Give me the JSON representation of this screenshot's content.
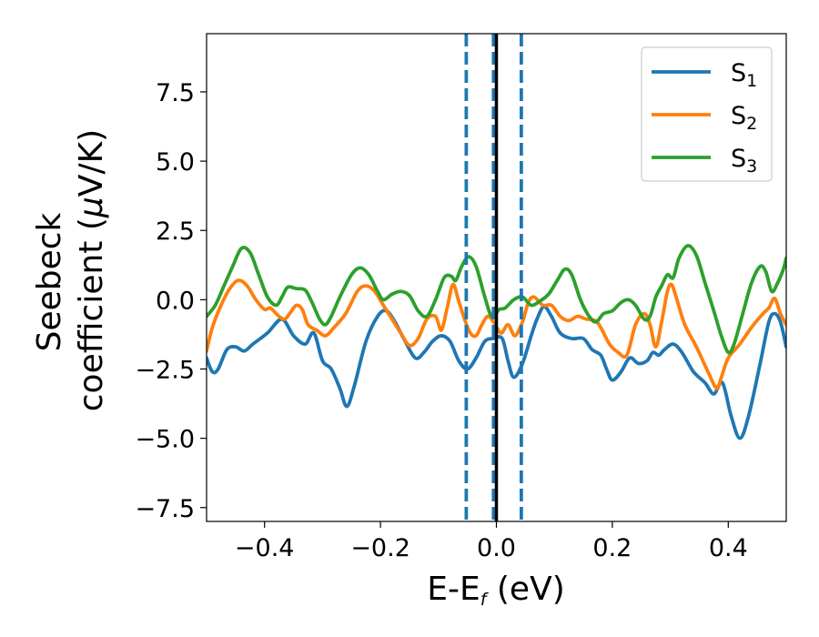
{
  "chart_data": {
    "type": "line",
    "xlabel": "E-E",
    "xlabel_subscript": "f",
    "xlabel_unit": " (eV)",
    "ylabel_line1": "Seebeck",
    "ylabel_line2": "coefficient  (",
    "ylabel_mu": "μ",
    "ylabel_end": "V/K)",
    "xlim": [
      -0.5,
      0.5
    ],
    "ylim": [
      -8.0,
      9.6
    ],
    "xticks": [
      -0.4,
      -0.2,
      0.0,
      0.2,
      0.4
    ],
    "xtick_labels": [
      "−0.4",
      "−0.2",
      "0.0",
      "0.2",
      "0.4"
    ],
    "yticks": [
      -7.5,
      -5.0,
      -2.5,
      0.0,
      2.5,
      5.0,
      7.5
    ],
    "ytick_labels": [
      "−7.5",
      "−5.0",
      "−2.5",
      "0.0",
      "2.5",
      "5.0",
      "7.5"
    ],
    "grid": false,
    "legend_position": "top-right",
    "vertical_lines": [
      {
        "x": -0.052,
        "style": "dashed",
        "color": "#1f77b4"
      },
      {
        "x": -0.005,
        "style": "dashed",
        "color": "#1f77b4"
      },
      {
        "x": 0.043,
        "style": "dashed",
        "color": "#1f77b4"
      },
      {
        "x": 0.0,
        "style": "solid",
        "color": "#000000"
      }
    ],
    "series": [
      {
        "name": "S",
        "subscript": "1",
        "color": "#1f77b4",
        "points": [
          [
            -0.5,
            -2.1
          ],
          [
            -0.49,
            -2.6
          ],
          [
            -0.48,
            -2.5
          ],
          [
            -0.465,
            -1.8
          ],
          [
            -0.45,
            -1.7
          ],
          [
            -0.435,
            -1.85
          ],
          [
            -0.42,
            -1.6
          ],
          [
            -0.395,
            -1.2
          ],
          [
            -0.37,
            -0.7
          ],
          [
            -0.35,
            -1.3
          ],
          [
            -0.33,
            -1.6
          ],
          [
            -0.315,
            -1.2
          ],
          [
            -0.3,
            -2.2
          ],
          [
            -0.285,
            -2.5
          ],
          [
            -0.27,
            -3.2
          ],
          [
            -0.258,
            -3.85
          ],
          [
            -0.245,
            -3.1
          ],
          [
            -0.225,
            -1.5
          ],
          [
            -0.205,
            -0.6
          ],
          [
            -0.19,
            -0.4
          ],
          [
            -0.175,
            -0.8
          ],
          [
            -0.16,
            -1.4
          ],
          [
            -0.14,
            -2.1
          ],
          [
            -0.125,
            -1.9
          ],
          [
            -0.11,
            -1.5
          ],
          [
            -0.095,
            -1.3
          ],
          [
            -0.08,
            -1.5
          ],
          [
            -0.065,
            -2.2
          ],
          [
            -0.05,
            -2.5
          ],
          [
            -0.035,
            -2.1
          ],
          [
            -0.02,
            -1.5
          ],
          [
            -0.005,
            -1.4
          ],
          [
            0.01,
            -1.4
          ],
          [
            0.02,
            -2.2
          ],
          [
            0.03,
            -2.8
          ],
          [
            0.045,
            -2.3
          ],
          [
            0.06,
            -1.3
          ],
          [
            0.07,
            -0.7
          ],
          [
            0.082,
            -0.25
          ],
          [
            0.095,
            -0.6
          ],
          [
            0.11,
            -1.2
          ],
          [
            0.13,
            -1.4
          ],
          [
            0.15,
            -1.4
          ],
          [
            0.165,
            -1.8
          ],
          [
            0.18,
            -2.0
          ],
          [
            0.19,
            -2.5
          ],
          [
            0.2,
            -2.9
          ],
          [
            0.215,
            -2.6
          ],
          [
            0.23,
            -2.1
          ],
          [
            0.245,
            -2.3
          ],
          [
            0.26,
            -2.2
          ],
          [
            0.27,
            -1.9
          ],
          [
            0.28,
            -2.0
          ],
          [
            0.29,
            -1.8
          ],
          [
            0.305,
            -1.6
          ],
          [
            0.32,
            -1.9
          ],
          [
            0.34,
            -2.6
          ],
          [
            0.36,
            -3.0
          ],
          [
            0.375,
            -3.4
          ],
          [
            0.39,
            -3.0
          ],
          [
            0.405,
            -4.2
          ],
          [
            0.42,
            -5.0
          ],
          [
            0.435,
            -4.2
          ],
          [
            0.455,
            -2.3
          ],
          [
            0.47,
            -0.8
          ],
          [
            0.48,
            -0.5
          ],
          [
            0.49,
            -0.8
          ],
          [
            0.5,
            -1.7
          ]
        ]
      },
      {
        "name": "S",
        "subscript": "2",
        "color": "#ff7f0e",
        "points": [
          [
            -0.5,
            -1.85
          ],
          [
            -0.49,
            -1.0
          ],
          [
            -0.475,
            -0.2
          ],
          [
            -0.46,
            0.4
          ],
          [
            -0.445,
            0.7
          ],
          [
            -0.43,
            0.5
          ],
          [
            -0.415,
            0.0
          ],
          [
            -0.4,
            -0.35
          ],
          [
            -0.39,
            -0.3
          ],
          [
            -0.375,
            -0.6
          ],
          [
            -0.365,
            -0.7
          ],
          [
            -0.355,
            -0.45
          ],
          [
            -0.345,
            -0.2
          ],
          [
            -0.335,
            -0.35
          ],
          [
            -0.325,
            -0.9
          ],
          [
            -0.31,
            -1.1
          ],
          [
            -0.295,
            -1.3
          ],
          [
            -0.28,
            -1.0
          ],
          [
            -0.26,
            -0.5
          ],
          [
            -0.24,
            0.3
          ],
          [
            -0.225,
            0.5
          ],
          [
            -0.21,
            0.3
          ],
          [
            -0.195,
            -0.2
          ],
          [
            -0.18,
            -0.7
          ],
          [
            -0.165,
            -1.2
          ],
          [
            -0.15,
            -1.65
          ],
          [
            -0.135,
            -1.4
          ],
          [
            -0.12,
            -0.7
          ],
          [
            -0.105,
            -0.6
          ],
          [
            -0.095,
            -1.1
          ],
          [
            -0.085,
            -0.3
          ],
          [
            -0.075,
            0.55
          ],
          [
            -0.065,
            -0.05
          ],
          [
            -0.055,
            -0.7
          ],
          [
            -0.045,
            -1.2
          ],
          [
            -0.035,
            -1.3
          ],
          [
            -0.025,
            -0.9
          ],
          [
            -0.015,
            -0.6
          ],
          [
            -0.005,
            -0.8
          ],
          [
            0.008,
            -1.2
          ],
          [
            0.02,
            -0.9
          ],
          [
            0.032,
            -1.3
          ],
          [
            0.045,
            -0.8
          ],
          [
            0.055,
            -0.1
          ],
          [
            0.065,
            0.1
          ],
          [
            0.08,
            -0.2
          ],
          [
            0.095,
            -0.2
          ],
          [
            0.11,
            -0.6
          ],
          [
            0.125,
            -0.75
          ],
          [
            0.14,
            -0.6
          ],
          [
            0.155,
            -0.7
          ],
          [
            0.17,
            -0.75
          ],
          [
            0.18,
            -1.0
          ],
          [
            0.195,
            -1.6
          ],
          [
            0.21,
            -1.9
          ],
          [
            0.225,
            -2.0
          ],
          [
            0.24,
            -0.9
          ],
          [
            0.255,
            -0.5
          ],
          [
            0.265,
            -0.9
          ],
          [
            0.275,
            -1.7
          ],
          [
            0.285,
            -0.8
          ],
          [
            0.295,
            0.3
          ],
          [
            0.302,
            0.55
          ],
          [
            0.31,
            0.1
          ],
          [
            0.325,
            -0.9
          ],
          [
            0.345,
            -1.7
          ],
          [
            0.365,
            -2.6
          ],
          [
            0.38,
            -3.2
          ],
          [
            0.388,
            -2.8
          ],
          [
            0.4,
            -2.1
          ],
          [
            0.42,
            -1.6
          ],
          [
            0.44,
            -1.0
          ],
          [
            0.46,
            -0.5
          ],
          [
            0.47,
            -0.3
          ],
          [
            0.48,
            0.05
          ],
          [
            0.49,
            -0.5
          ],
          [
            0.5,
            -0.9
          ]
        ]
      },
      {
        "name": "S",
        "subscript": "3",
        "color": "#2ca02c",
        "points": [
          [
            -0.5,
            -0.6
          ],
          [
            -0.485,
            -0.2
          ],
          [
            -0.47,
            0.5
          ],
          [
            -0.455,
            1.2
          ],
          [
            -0.44,
            1.85
          ],
          [
            -0.425,
            1.7
          ],
          [
            -0.41,
            0.9
          ],
          [
            -0.395,
            0.1
          ],
          [
            -0.38,
            -0.2
          ],
          [
            -0.37,
            0.1
          ],
          [
            -0.36,
            0.45
          ],
          [
            -0.345,
            0.4
          ],
          [
            -0.33,
            0.35
          ],
          [
            -0.318,
            -0.1
          ],
          [
            -0.305,
            -0.7
          ],
          [
            -0.295,
            -0.9
          ],
          [
            -0.285,
            -0.6
          ],
          [
            -0.27,
            0.1
          ],
          [
            -0.25,
            0.9
          ],
          [
            -0.235,
            1.15
          ],
          [
            -0.22,
            0.9
          ],
          [
            -0.205,
            0.3
          ],
          [
            -0.195,
            0.0
          ],
          [
            -0.18,
            0.2
          ],
          [
            -0.165,
            0.3
          ],
          [
            -0.15,
            0.15
          ],
          [
            -0.135,
            -0.4
          ],
          [
            -0.12,
            -0.6
          ],
          [
            -0.105,
            0.0
          ],
          [
            -0.09,
            0.8
          ],
          [
            -0.078,
            0.85
          ],
          [
            -0.07,
            0.7
          ],
          [
            -0.06,
            1.2
          ],
          [
            -0.048,
            1.55
          ],
          [
            -0.035,
            1.2
          ],
          [
            -0.02,
            0.1
          ],
          [
            -0.008,
            -0.6
          ],
          [
            0.005,
            -0.35
          ],
          [
            0.015,
            -0.3
          ],
          [
            0.03,
            0.0
          ],
          [
            0.045,
            0.1
          ],
          [
            0.06,
            -0.2
          ],
          [
            0.075,
            -0.05
          ],
          [
            0.09,
            0.2
          ],
          [
            0.105,
            0.7
          ],
          [
            0.118,
            1.1
          ],
          [
            0.13,
            0.9
          ],
          [
            0.145,
            0.0
          ],
          [
            0.16,
            -0.6
          ],
          [
            0.172,
            -0.8
          ],
          [
            0.185,
            -0.5
          ],
          [
            0.2,
            -0.4
          ],
          [
            0.215,
            -0.1
          ],
          [
            0.228,
            0.0
          ],
          [
            0.24,
            -0.2
          ],
          [
            0.255,
            -0.7
          ],
          [
            0.265,
            -0.6
          ],
          [
            0.275,
            0.1
          ],
          [
            0.285,
            0.5
          ],
          [
            0.295,
            0.9
          ],
          [
            0.305,
            0.8
          ],
          [
            0.315,
            1.5
          ],
          [
            0.33,
            1.95
          ],
          [
            0.345,
            1.6
          ],
          [
            0.36,
            0.6
          ],
          [
            0.375,
            -0.4
          ],
          [
            0.388,
            -1.3
          ],
          [
            0.4,
            -1.9
          ],
          [
            0.41,
            -1.6
          ],
          [
            0.425,
            -0.5
          ],
          [
            0.44,
            0.6
          ],
          [
            0.455,
            1.2
          ],
          [
            0.465,
            1.0
          ],
          [
            0.475,
            0.3
          ],
          [
            0.485,
            0.6
          ],
          [
            0.495,
            1.1
          ],
          [
            0.5,
            1.5
          ]
        ]
      }
    ]
  }
}
